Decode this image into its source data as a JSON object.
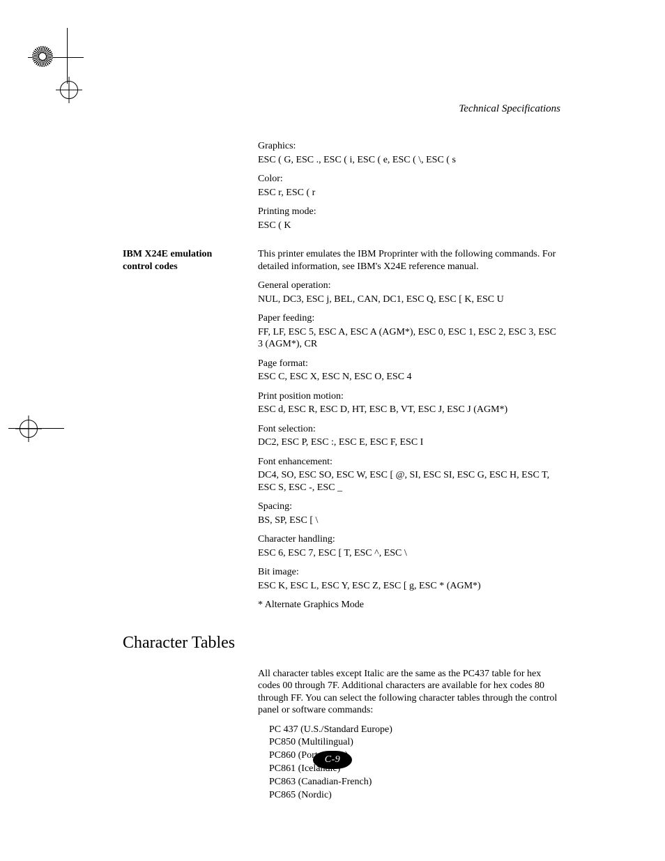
{
  "running_head": "Technical Specifications",
  "page_number": "C-9",
  "top_blocks": [
    {
      "title": "Graphics:",
      "body": "ESC ( G, ESC ., ESC ( i, ESC ( e, ESC ( \\, ESC ( s"
    },
    {
      "title": "Color:",
      "body": "ESC r, ESC ( r"
    },
    {
      "title": "Printing mode:",
      "body": "ESC ( K"
    }
  ],
  "ibm": {
    "label_line1": "IBM X24E emulation",
    "label_line2": "control codes",
    "intro": "This printer emulates the IBM Proprinter with the following commands. For detailed information, see IBM's X24E reference manual.",
    "sections": [
      {
        "title": "General operation:",
        "body": "NUL, DC3, ESC j, BEL, CAN, DC1, ESC Q, ESC [ K, ESC U"
      },
      {
        "title": "Paper feeding:",
        "body": "FF, LF, ESC 5, ESC A, ESC A (AGM*), ESC 0, ESC 1, ESC 2, ESC 3, ESC 3 (AGM*), CR"
      },
      {
        "title": "Page format:",
        "body": "ESC C, ESC X, ESC N, ESC O, ESC 4"
      },
      {
        "title": "Print position motion:",
        "body": "ESC d, ESC R, ESC D, HT, ESC B, VT, ESC J, ESC J (AGM*)"
      },
      {
        "title": "Font selection:",
        "body": "DC2, ESC P, ESC :, ESC E, ESC F, ESC I"
      },
      {
        "title": "Font enhancement:",
        "body": "DC4, SO, ESC SO, ESC W, ESC [ @, SI, ESC SI, ESC G, ESC H, ESC T, ESC S, ESC -, ESC _"
      },
      {
        "title": "Spacing:",
        "body": "BS, SP, ESC [ \\"
      },
      {
        "title": "Character handling:",
        "body": "ESC 6, ESC 7, ESC [ T, ESC ^, ESC \\"
      },
      {
        "title": "Bit image:",
        "body": "ESC K, ESC L, ESC Y, ESC Z, ESC [ g, ESC * (AGM*)"
      }
    ],
    "footnote": "* Alternate Graphics Mode"
  },
  "char_tables": {
    "heading": "Character Tables",
    "intro": "All character tables except Italic are the same as the PC437 table for hex codes 00 through 7F. Additional characters are available for hex codes 80 through FF. You can select the following character tables through the control panel or software commands:",
    "items": [
      "PC 437 (U.S./Standard Europe)",
      "PC850 (Multilingual)",
      "PC860 (Portuguese)",
      "PC861 (Icelandic)",
      "PC863 (Canadian-French)",
      "PC865 (Nordic)"
    ]
  },
  "style": {
    "body_fontsize_pt": 10.5,
    "heading_fontsize_pt": 18,
    "running_head_italic": true,
    "text_color": "#000000",
    "background_color": "#ffffff",
    "page_badge_bg": "#000000",
    "page_badge_fg": "#ffffff"
  }
}
